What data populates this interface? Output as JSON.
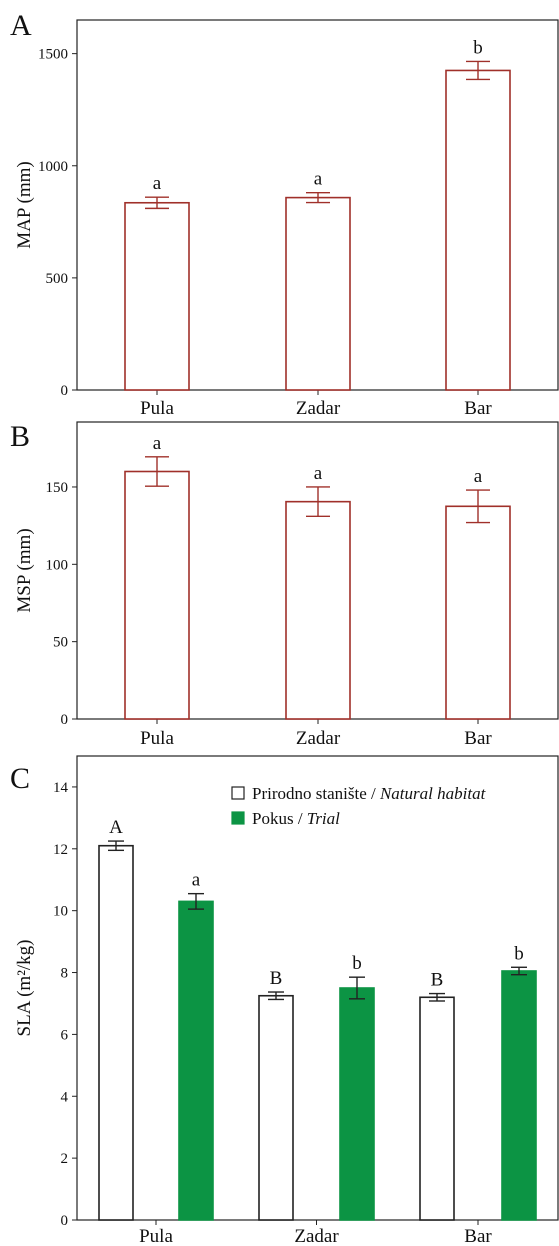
{
  "chart_data": [
    {
      "panel": "A",
      "type": "bar",
      "ylabel": "MAP (mm)",
      "categories": [
        "Pula",
        "Zadar",
        "Bar"
      ],
      "ylim": [
        0,
        1650
      ],
      "yticks": [
        0,
        500,
        1000,
        1500
      ],
      "bar_color": "#a0302a",
      "series": [
        {
          "values": [
            835,
            858,
            1425
          ],
          "error": [
            25,
            22,
            40
          ],
          "labels": [
            "a",
            "a",
            "b"
          ]
        }
      ]
    },
    {
      "panel": "B",
      "type": "bar",
      "ylabel": "MSP (mm)",
      "categories": [
        "Pula",
        "Zadar",
        "Bar"
      ],
      "ylim": [
        0,
        192
      ],
      "yticks": [
        0,
        50,
        100,
        150
      ],
      "bar_color": "#a0302a",
      "series": [
        {
          "values": [
            160,
            140.5,
            137.5
          ],
          "error": [
            9.5,
            9.5,
            10.5
          ],
          "labels": [
            "a",
            "a",
            "a"
          ]
        }
      ]
    },
    {
      "panel": "C",
      "type": "bar",
      "ylabel": "SLA (m²/kg)",
      "categories": [
        "Pula",
        "Zadar",
        "Bar"
      ],
      "ylim": [
        0,
        15
      ],
      "yticks": [
        0,
        2,
        4,
        6,
        8,
        10,
        12,
        14
      ],
      "legend_position": "top-right",
      "series": [
        {
          "name": "Prirodno stanište / ",
          "name_italic": "Natural habitat",
          "fill": "#ffffff",
          "values": [
            12.1,
            7.25,
            7.2
          ],
          "error": [
            0.15,
            0.12,
            0.12
          ],
          "labels": [
            "A",
            "B",
            "B"
          ]
        },
        {
          "name": "Pokus / ",
          "name_italic": "Trial",
          "fill": "#0c9444",
          "values": [
            10.3,
            7.5,
            8.05
          ],
          "error": [
            0.25,
            0.35,
            0.12
          ],
          "labels": [
            "a",
            "b",
            "b"
          ]
        }
      ]
    }
  ]
}
